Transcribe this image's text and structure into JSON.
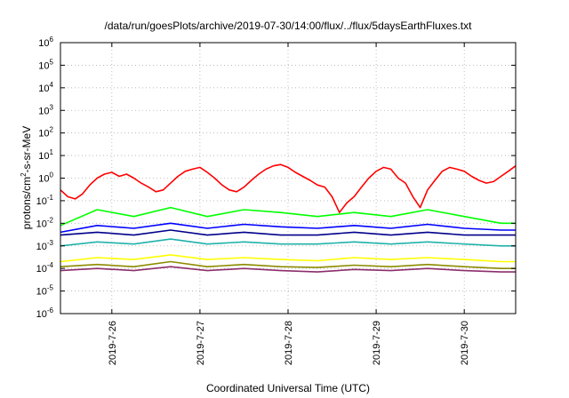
{
  "chart_data": {
    "type": "line",
    "title": "/data/run/goesPlots/archive/2019-07-30/14:00/flux/../flux/5daysEarthFluxes.txt",
    "xlabel": "Coordinated Universal Time (UTC)",
    "ylabel": {
      "prefix": "protons/cm",
      "sup": "2",
      "suffix": "-s-sr-MeV"
    },
    "yscale": "log",
    "ylim": [
      1e-06,
      1000000.0
    ],
    "y_ticks": [
      {
        "base": "10",
        "exp": "-6"
      },
      {
        "base": "10",
        "exp": "-5"
      },
      {
        "base": "10",
        "exp": "-4"
      },
      {
        "base": "10",
        "exp": "-3"
      },
      {
        "base": "10",
        "exp": "-2"
      },
      {
        "base": "10",
        "exp": "-1"
      },
      {
        "base": "10",
        "exp": "0"
      },
      {
        "base": "10",
        "exp": "1"
      },
      {
        "base": "10",
        "exp": "2"
      },
      {
        "base": "10",
        "exp": "3"
      },
      {
        "base": "10",
        "exp": "4"
      },
      {
        "base": "10",
        "exp": "5"
      },
      {
        "base": "10",
        "exp": "6"
      }
    ],
    "xlim": [
      "2019-07-25 10:00",
      "2019-07-30 14:00"
    ],
    "x_ticks": [
      "2019-7-26",
      "2019-7-27",
      "2019-7-28",
      "2019-7-29",
      "2019-7-30"
    ],
    "grid": true,
    "series_colors": [
      "#ff0000",
      "#00ff00",
      "#0000ff",
      "#00008b",
      "#20b2aa",
      "#ffff00",
      "#8b8b00",
      "#8b2d6b"
    ],
    "series": [
      {
        "color": "#ff0000",
        "x": [
          "2019-07-25 10:00",
          "2019-07-25 12:00",
          "2019-07-25 14:00",
          "2019-07-25 16:00",
          "2019-07-25 18:00",
          "2019-07-25 20:00",
          "2019-07-25 22:00",
          "2019-07-26 00:00",
          "2019-07-26 02:00",
          "2019-07-26 04:00",
          "2019-07-26 06:00",
          "2019-07-26 08:00",
          "2019-07-26 10:00",
          "2019-07-26 12:00",
          "2019-07-26 14:00",
          "2019-07-26 16:00",
          "2019-07-26 18:00",
          "2019-07-26 20:00",
          "2019-07-26 22:00",
          "2019-07-27 00:00",
          "2019-07-27 02:00",
          "2019-07-27 04:00",
          "2019-07-27 06:00",
          "2019-07-27 08:00",
          "2019-07-27 10:00",
          "2019-07-27 12:00",
          "2019-07-27 14:00",
          "2019-07-27 16:00",
          "2019-07-27 18:00",
          "2019-07-27 20:00",
          "2019-07-27 22:00",
          "2019-07-28 00:00",
          "2019-07-28 02:00",
          "2019-07-28 04:00",
          "2019-07-28 06:00",
          "2019-07-28 08:00",
          "2019-07-28 10:00",
          "2019-07-28 12:00",
          "2019-07-28 14:00",
          "2019-07-28 16:00",
          "2019-07-28 18:00",
          "2019-07-28 20:00",
          "2019-07-28 22:00",
          "2019-07-29 00:00",
          "2019-07-29 02:00",
          "2019-07-29 04:00",
          "2019-07-29 06:00",
          "2019-07-29 08:00",
          "2019-07-29 10:00",
          "2019-07-29 12:00",
          "2019-07-29 14:00",
          "2019-07-29 16:00",
          "2019-07-29 18:00",
          "2019-07-29 20:00",
          "2019-07-29 22:00",
          "2019-07-30 00:00",
          "2019-07-30 02:00",
          "2019-07-30 04:00",
          "2019-07-30 06:00",
          "2019-07-30 08:00",
          "2019-07-30 10:00",
          "2019-07-30 12:00",
          "2019-07-30 14:00"
        ],
        "values": [
          0.3,
          0.15,
          0.12,
          0.2,
          0.5,
          1.0,
          1.5,
          1.8,
          1.2,
          1.5,
          1.0,
          0.6,
          0.4,
          0.25,
          0.3,
          0.6,
          1.2,
          2.0,
          2.5,
          3.0,
          1.8,
          1.0,
          0.5,
          0.3,
          0.25,
          0.4,
          0.8,
          1.5,
          2.5,
          3.5,
          4.0,
          3.0,
          1.8,
          1.2,
          0.8,
          0.5,
          0.4,
          0.15,
          0.03,
          0.08,
          0.15,
          0.4,
          1.0,
          2.0,
          3.0,
          2.5,
          1.0,
          0.6,
          0.15,
          0.05,
          0.3,
          0.8,
          2.0,
          3.0,
          2.5,
          2.0,
          1.2,
          0.8,
          0.6,
          0.7,
          1.2,
          2.0,
          3.5
        ]
      },
      {
        "color": "#00ff00",
        "x": [
          "2019-07-25 10:00",
          "2019-07-25 20:00",
          "2019-07-26 06:00",
          "2019-07-26 16:00",
          "2019-07-27 02:00",
          "2019-07-27 12:00",
          "2019-07-27 22:00",
          "2019-07-28 08:00",
          "2019-07-28 18:00",
          "2019-07-29 04:00",
          "2019-07-29 14:00",
          "2019-07-30 00:00",
          "2019-07-30 10:00",
          "2019-07-30 14:00"
        ],
        "values": [
          0.008,
          0.04,
          0.02,
          0.05,
          0.02,
          0.04,
          0.03,
          0.02,
          0.03,
          0.02,
          0.04,
          0.02,
          0.01,
          0.01
        ]
      },
      {
        "color": "#0000ff",
        "x": [
          "2019-07-25 10:00",
          "2019-07-25 20:00",
          "2019-07-26 06:00",
          "2019-07-26 16:00",
          "2019-07-27 02:00",
          "2019-07-27 12:00",
          "2019-07-27 22:00",
          "2019-07-28 08:00",
          "2019-07-28 18:00",
          "2019-07-29 04:00",
          "2019-07-29 14:00",
          "2019-07-30 00:00",
          "2019-07-30 10:00",
          "2019-07-30 14:00"
        ],
        "values": [
          0.004,
          0.008,
          0.006,
          0.01,
          0.006,
          0.009,
          0.007,
          0.006,
          0.008,
          0.006,
          0.009,
          0.006,
          0.005,
          0.005
        ]
      },
      {
        "color": "#00008b",
        "x": [
          "2019-07-25 10:00",
          "2019-07-25 20:00",
          "2019-07-26 06:00",
          "2019-07-26 16:00",
          "2019-07-27 02:00",
          "2019-07-27 12:00",
          "2019-07-27 22:00",
          "2019-07-28 08:00",
          "2019-07-28 18:00",
          "2019-07-29 04:00",
          "2019-07-29 14:00",
          "2019-07-30 00:00",
          "2019-07-30 10:00",
          "2019-07-30 14:00"
        ],
        "values": [
          0.003,
          0.004,
          0.003,
          0.005,
          0.003,
          0.004,
          0.003,
          0.003,
          0.004,
          0.003,
          0.004,
          0.003,
          0.003,
          0.003
        ]
      },
      {
        "color": "#20b2aa",
        "x": [
          "2019-07-25 10:00",
          "2019-07-25 20:00",
          "2019-07-26 06:00",
          "2019-07-26 16:00",
          "2019-07-27 02:00",
          "2019-07-27 12:00",
          "2019-07-27 22:00",
          "2019-07-28 08:00",
          "2019-07-28 18:00",
          "2019-07-29 04:00",
          "2019-07-29 14:00",
          "2019-07-30 00:00",
          "2019-07-30 10:00",
          "2019-07-30 14:00"
        ],
        "values": [
          0.001,
          0.0015,
          0.0012,
          0.002,
          0.0012,
          0.0015,
          0.0012,
          0.0012,
          0.0015,
          0.0012,
          0.0015,
          0.0012,
          0.001,
          0.001
        ]
      },
      {
        "color": "#ffff00",
        "x": [
          "2019-07-25 10:00",
          "2019-07-25 20:00",
          "2019-07-26 06:00",
          "2019-07-26 16:00",
          "2019-07-27 02:00",
          "2019-07-27 12:00",
          "2019-07-27 22:00",
          "2019-07-28 08:00",
          "2019-07-28 18:00",
          "2019-07-29 04:00",
          "2019-07-29 14:00",
          "2019-07-30 00:00",
          "2019-07-30 10:00",
          "2019-07-30 14:00"
        ],
        "values": [
          0.0002,
          0.0003,
          0.00025,
          0.0004,
          0.00025,
          0.0003,
          0.00025,
          0.00022,
          0.0003,
          0.00025,
          0.0003,
          0.00025,
          0.0002,
          0.0002
        ]
      },
      {
        "color": "#8b8b00",
        "x": [
          "2019-07-25 10:00",
          "2019-07-25 20:00",
          "2019-07-26 06:00",
          "2019-07-26 16:00",
          "2019-07-27 02:00",
          "2019-07-27 12:00",
          "2019-07-27 22:00",
          "2019-07-28 08:00",
          "2019-07-28 18:00",
          "2019-07-29 04:00",
          "2019-07-29 14:00",
          "2019-07-30 00:00",
          "2019-07-30 10:00",
          "2019-07-30 14:00"
        ],
        "values": [
          0.00012,
          0.00015,
          0.00012,
          0.0002,
          0.00012,
          0.00015,
          0.00012,
          0.00011,
          0.00014,
          0.00012,
          0.00015,
          0.00012,
          0.0001,
          0.0001
        ]
      },
      {
        "color": "#8b2d6b",
        "x": [
          "2019-07-25 10:00",
          "2019-07-25 20:00",
          "2019-07-26 06:00",
          "2019-07-26 16:00",
          "2019-07-27 02:00",
          "2019-07-27 12:00",
          "2019-07-27 22:00",
          "2019-07-28 08:00",
          "2019-07-28 18:00",
          "2019-07-29 04:00",
          "2019-07-29 14:00",
          "2019-07-30 00:00",
          "2019-07-30 10:00",
          "2019-07-30 14:00"
        ],
        "values": [
          8e-05,
          0.0001,
          8e-05,
          0.00012,
          8e-05,
          0.0001,
          8e-05,
          7e-05,
          9e-05,
          8e-05,
          0.0001,
          8e-05,
          7e-05,
          7e-05
        ]
      }
    ]
  }
}
